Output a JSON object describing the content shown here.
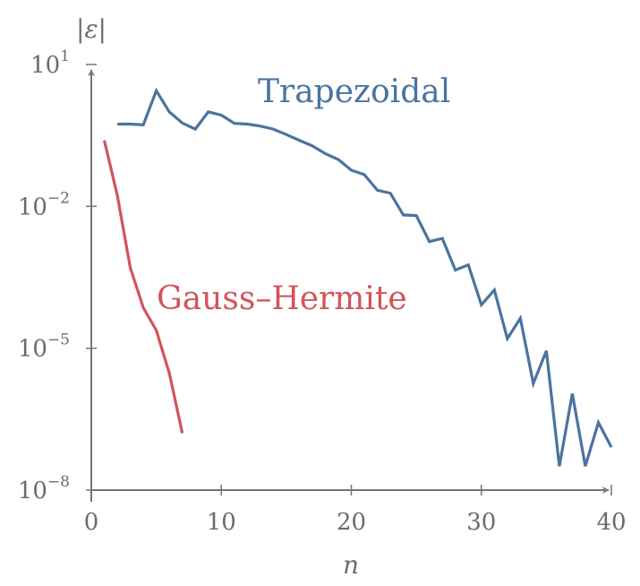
{
  "chart_data": {
    "type": "line",
    "title": "",
    "xlabel": "n",
    "ylabel": "|ε|",
    "xlim": [
      0,
      40
    ],
    "ylim": [
      1e-08,
      10
    ],
    "yscale": "log",
    "grid": false,
    "x_ticks": [
      "0",
      "10",
      "20",
      "30",
      "40"
    ],
    "y_ticks": [
      {
        "base": "10",
        "exp": "1"
      },
      {
        "base": "10",
        "exp": "−2"
      },
      {
        "base": "10",
        "exp": "−5"
      },
      {
        "base": "10",
        "exp": "−8"
      }
    ],
    "series": [
      {
        "name": "Trapezoidal",
        "color": "#4a74a0",
        "x": [
          2,
          3,
          4,
          5,
          6,
          7,
          8,
          9,
          10,
          11,
          12,
          13,
          14,
          15,
          16,
          17,
          18,
          19,
          20,
          21,
          22,
          23,
          24,
          25,
          26,
          27,
          28,
          29,
          30,
          31,
          32,
          33,
          34,
          35,
          36,
          37,
          38,
          39,
          40
        ],
        "y": [
          0.55,
          0.55,
          0.53,
          2.8,
          1.0,
          0.58,
          0.43,
          1.0,
          0.85,
          0.57,
          0.55,
          0.5,
          0.43,
          0.33,
          0.25,
          0.19,
          0.13,
          0.098,
          0.058,
          0.047,
          0.022,
          0.019,
          0.0066,
          0.0064,
          0.0018,
          0.0021,
          0.00045,
          0.00058,
          8.3e-05,
          0.00017,
          1.6e-05,
          4.3e-05,
          1.8e-06,
          8.8e-06,
          3.2e-08,
          1.1e-06,
          3.2e-08,
          2.7e-07,
          8.1e-08
        ]
      },
      {
        "name": "Gauss–Hermite",
        "color": "#d2545a",
        "x": [
          1,
          2,
          3,
          4,
          5,
          6,
          7
        ],
        "y": [
          0.25,
          0.017,
          0.0005,
          7.2e-05,
          2.4e-05,
          3e-06,
          1.6e-07
        ]
      }
    ]
  }
}
